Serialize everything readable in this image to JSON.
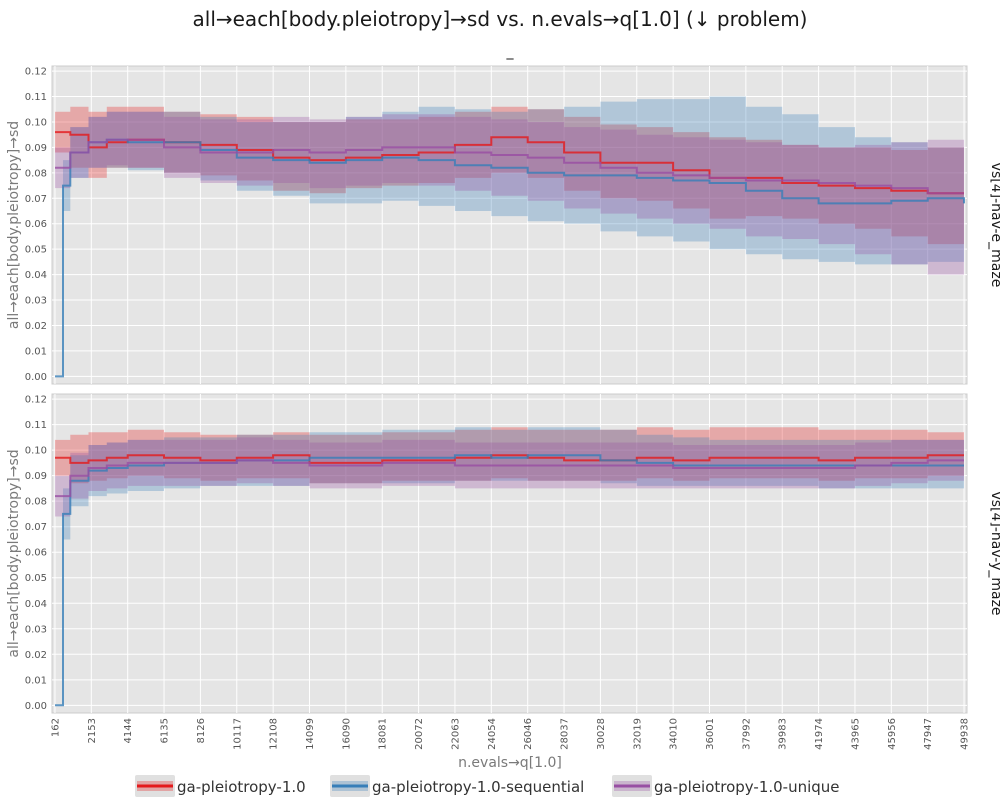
{
  "chart_data": {
    "type": "line",
    "title": "all→each[body.pleiotropy]→sd vs. n.evals→q[1.0] (↓ problem)",
    "subtitle": "_",
    "xlabel": "n.evals→q[1.0]",
    "ylabel": "all→each[body.pleiotropy]→sd",
    "xlim": [
      0,
      50100
    ],
    "ylim": [
      -0.003,
      0.122
    ],
    "x_ticks": [
      162,
      2153,
      4144,
      6135,
      8126,
      10117,
      12108,
      14099,
      16090,
      18081,
      20072,
      22063,
      24054,
      26046,
      28037,
      30028,
      32019,
      34010,
      36001,
      37992,
      39983,
      41974,
      43965,
      45956,
      47947,
      49938
    ],
    "y_ticks": [
      "0.00",
      "0.01",
      "0.02",
      "0.03",
      "0.04",
      "0.05",
      "0.06",
      "0.07",
      "0.08",
      "0.09",
      "0.10",
      "0.11",
      "0.12"
    ],
    "grid": true,
    "legend": {
      "position": "bottom",
      "entries": [
        "ga-pleiotropy-1.0",
        "ga-pleiotropy-1.0-sequential",
        "ga-pleiotropy-1.0-unique"
      ]
    },
    "colors": {
      "ga-pleiotropy-1.0": "#e41a1c",
      "ga-pleiotropy-1.0-sequential": "#377eb8",
      "ga-pleiotropy-1.0-unique": "#984ea3",
      "panel_bg": "#e5e5e5",
      "grid": "#ffffff"
    },
    "facets": [
      {
        "label": "vs[4]-nav-e_maze",
        "series": [
          {
            "name": "ga-pleiotropy-1.0",
            "x": [
              162,
              1000,
              2000,
              3000,
              4144,
              6135,
              8126,
              10117,
              12108,
              14099,
              16090,
              18081,
              20072,
              22063,
              24054,
              26046,
              28037,
              30028,
              32019,
              34010,
              36001,
              37992,
              39983,
              41974,
              43965,
              45956,
              47947,
              49938
            ],
            "y": [
              0.096,
              0.095,
              0.09,
              0.092,
              0.093,
              0.092,
              0.091,
              0.089,
              0.086,
              0.085,
              0.086,
              0.087,
              0.088,
              0.091,
              0.094,
              0.092,
              0.088,
              0.084,
              0.084,
              0.081,
              0.078,
              0.078,
              0.076,
              0.075,
              0.074,
              0.073,
              0.072,
              0.072
            ],
            "lo": [
              0.088,
              0.082,
              0.078,
              0.082,
              0.082,
              0.08,
              0.079,
              0.077,
              0.073,
              0.072,
              0.074,
              0.075,
              0.076,
              0.078,
              0.08,
              0.078,
              0.073,
              0.07,
              0.069,
              0.066,
              0.062,
              0.063,
              0.062,
              0.06,
              0.058,
              0.055,
              0.052,
              0.052
            ],
            "hi": [
              0.104,
              0.106,
              0.104,
              0.106,
              0.106,
              0.104,
              0.103,
              0.102,
              0.1,
              0.1,
              0.101,
              0.101,
              0.102,
              0.104,
              0.106,
              0.105,
              0.102,
              0.099,
              0.098,
              0.096,
              0.094,
              0.093,
              0.091,
              0.09,
              0.09,
              0.089,
              0.09,
              0.09
            ]
          },
          {
            "name": "ga-pleiotropy-1.0-sequential",
            "x": [
              162,
              600,
              1000,
              2000,
              3000,
              4144,
              6135,
              8126,
              10117,
              12108,
              14099,
              16090,
              18081,
              20072,
              22063,
              24054,
              26046,
              28037,
              30028,
              32019,
              34010,
              36001,
              37992,
              39983,
              41974,
              43965,
              45956,
              47947,
              49938
            ],
            "y": [
              0.0,
              0.075,
              0.088,
              0.092,
              0.093,
              0.092,
              0.092,
              0.089,
              0.086,
              0.085,
              0.084,
              0.085,
              0.086,
              0.085,
              0.083,
              0.082,
              0.08,
              0.079,
              0.079,
              0.078,
              0.077,
              0.076,
              0.073,
              0.07,
              0.068,
              0.068,
              0.069,
              0.07,
              0.068
            ],
            "lo": [
              0.0,
              0.065,
              0.078,
              0.082,
              0.082,
              0.081,
              0.08,
              0.077,
              0.073,
              0.071,
              0.068,
              0.068,
              0.069,
              0.067,
              0.065,
              0.063,
              0.061,
              0.06,
              0.057,
              0.055,
              0.053,
              0.05,
              0.048,
              0.046,
              0.045,
              0.044,
              0.044,
              0.045,
              0.045
            ],
            "hi": [
              0.0,
              0.085,
              0.098,
              0.102,
              0.104,
              0.104,
              0.104,
              0.102,
              0.1,
              0.1,
              0.1,
              0.102,
              0.104,
              0.106,
              0.105,
              0.104,
              0.105,
              0.106,
              0.108,
              0.109,
              0.109,
              0.11,
              0.106,
              0.103,
              0.098,
              0.094,
              0.092,
              0.09,
              0.088
            ]
          },
          {
            "name": "ga-pleiotropy-1.0-unique",
            "x": [
              162,
              1000,
              2000,
              3000,
              4144,
              6135,
              8126,
              10117,
              12108,
              14099,
              16090,
              18081,
              20072,
              22063,
              24054,
              26046,
              28037,
              30028,
              32019,
              34010,
              36001,
              37992,
              39983,
              41974,
              43965,
              45956,
              47947,
              49938
            ],
            "y": [
              0.082,
              0.088,
              0.092,
              0.093,
              0.093,
              0.09,
              0.088,
              0.088,
              0.089,
              0.088,
              0.089,
              0.09,
              0.09,
              0.088,
              0.087,
              0.086,
              0.084,
              0.082,
              0.08,
              0.079,
              0.078,
              0.077,
              0.077,
              0.076,
              0.075,
              0.074,
              0.072,
              0.072
            ],
            "lo": [
              0.074,
              0.078,
              0.082,
              0.083,
              0.082,
              0.078,
              0.076,
              0.075,
              0.076,
              0.074,
              0.075,
              0.076,
              0.075,
              0.073,
              0.071,
              0.069,
              0.066,
              0.064,
              0.062,
              0.06,
              0.058,
              0.055,
              0.054,
              0.052,
              0.048,
              0.044,
              0.04,
              0.038
            ],
            "hi": [
              0.09,
              0.098,
              0.102,
              0.104,
              0.104,
              0.102,
              0.101,
              0.101,
              0.102,
              0.101,
              0.102,
              0.103,
              0.103,
              0.102,
              0.101,
              0.1,
              0.098,
              0.097,
              0.095,
              0.094,
              0.093,
              0.092,
              0.091,
              0.09,
              0.091,
              0.092,
              0.093,
              0.093
            ]
          }
        ]
      },
      {
        "label": "vs[4]-nav-y_maze",
        "series": [
          {
            "name": "ga-pleiotropy-1.0",
            "x": [
              162,
              1000,
              2000,
              3000,
              4144,
              6135,
              8126,
              10117,
              12108,
              14099,
              16090,
              18081,
              20072,
              22063,
              24054,
              26046,
              28037,
              30028,
              32019,
              34010,
              36001,
              37992,
              39983,
              41974,
              43965,
              45956,
              47947,
              49938
            ],
            "y": [
              0.097,
              0.095,
              0.096,
              0.097,
              0.098,
              0.097,
              0.096,
              0.097,
              0.098,
              0.095,
              0.095,
              0.096,
              0.096,
              0.097,
              0.098,
              0.097,
              0.096,
              0.096,
              0.097,
              0.096,
              0.097,
              0.097,
              0.097,
              0.096,
              0.097,
              0.097,
              0.098,
              0.098
            ],
            "lo": [
              0.09,
              0.087,
              0.088,
              0.089,
              0.09,
              0.089,
              0.088,
              0.089,
              0.089,
              0.087,
              0.087,
              0.088,
              0.088,
              0.088,
              0.089,
              0.088,
              0.088,
              0.088,
              0.089,
              0.088,
              0.089,
              0.089,
              0.089,
              0.088,
              0.089,
              0.089,
              0.09,
              0.09
            ],
            "hi": [
              0.104,
              0.106,
              0.107,
              0.107,
              0.108,
              0.107,
              0.106,
              0.106,
              0.107,
              0.106,
              0.106,
              0.107,
              0.107,
              0.108,
              0.109,
              0.108,
              0.108,
              0.108,
              0.109,
              0.108,
              0.109,
              0.109,
              0.109,
              0.108,
              0.108,
              0.108,
              0.107,
              0.106
            ]
          },
          {
            "name": "ga-pleiotropy-1.0-sequential",
            "x": [
              162,
              600,
              1000,
              2000,
              3000,
              4144,
              6135,
              8126,
              10117,
              12108,
              14099,
              16090,
              18081,
              20072,
              22063,
              24054,
              26046,
              28037,
              30028,
              32019,
              34010,
              36001,
              37992,
              39983,
              41974,
              43965,
              45956,
              47947,
              49938
            ],
            "y": [
              0.0,
              0.075,
              0.088,
              0.092,
              0.093,
              0.094,
              0.095,
              0.095,
              0.096,
              0.096,
              0.097,
              0.097,
              0.097,
              0.097,
              0.098,
              0.097,
              0.098,
              0.098,
              0.096,
              0.095,
              0.094,
              0.094,
              0.094,
              0.094,
              0.094,
              0.094,
              0.094,
              0.094,
              0.094
            ],
            "lo": [
              0.0,
              0.065,
              0.078,
              0.082,
              0.083,
              0.084,
              0.085,
              0.086,
              0.086,
              0.086,
              0.087,
              0.087,
              0.087,
              0.087,
              0.088,
              0.088,
              0.088,
              0.088,
              0.087,
              0.086,
              0.086,
              0.086,
              0.086,
              0.086,
              0.085,
              0.085,
              0.085,
              0.085,
              0.085
            ],
            "hi": [
              0.0,
              0.085,
              0.098,
              0.102,
              0.103,
              0.104,
              0.105,
              0.105,
              0.106,
              0.106,
              0.107,
              0.107,
              0.108,
              0.108,
              0.109,
              0.108,
              0.109,
              0.109,
              0.108,
              0.106,
              0.105,
              0.104,
              0.104,
              0.104,
              0.104,
              0.104,
              0.104,
              0.104,
              0.104
            ]
          },
          {
            "name": "ga-pleiotropy-1.0-unique",
            "x": [
              162,
              1000,
              2000,
              3000,
              4144,
              6135,
              8126,
              10117,
              12108,
              14099,
              16090,
              18081,
              20072,
              22063,
              24054,
              26046,
              28037,
              30028,
              32019,
              34010,
              36001,
              37992,
              39983,
              41974,
              43965,
              45956,
              47947,
              49938
            ],
            "y": [
              0.082,
              0.09,
              0.093,
              0.094,
              0.095,
              0.095,
              0.095,
              0.096,
              0.095,
              0.094,
              0.094,
              0.095,
              0.095,
              0.094,
              0.094,
              0.094,
              0.094,
              0.094,
              0.094,
              0.093,
              0.093,
              0.093,
              0.093,
              0.093,
              0.094,
              0.095,
              0.096,
              0.096
            ],
            "lo": [
              0.074,
              0.081,
              0.084,
              0.085,
              0.086,
              0.086,
              0.086,
              0.087,
              0.086,
              0.085,
              0.085,
              0.086,
              0.086,
              0.085,
              0.085,
              0.085,
              0.085,
              0.085,
              0.085,
              0.085,
              0.085,
              0.085,
              0.085,
              0.085,
              0.086,
              0.087,
              0.088,
              0.088
            ],
            "hi": [
              0.09,
              0.099,
              0.102,
              0.103,
              0.104,
              0.104,
              0.104,
              0.105,
              0.104,
              0.103,
              0.103,
              0.104,
              0.104,
              0.103,
              0.103,
              0.103,
              0.103,
              0.103,
              0.103,
              0.102,
              0.102,
              0.102,
              0.102,
              0.102,
              0.103,
              0.104,
              0.104,
              0.104
            ]
          }
        ]
      }
    ]
  }
}
